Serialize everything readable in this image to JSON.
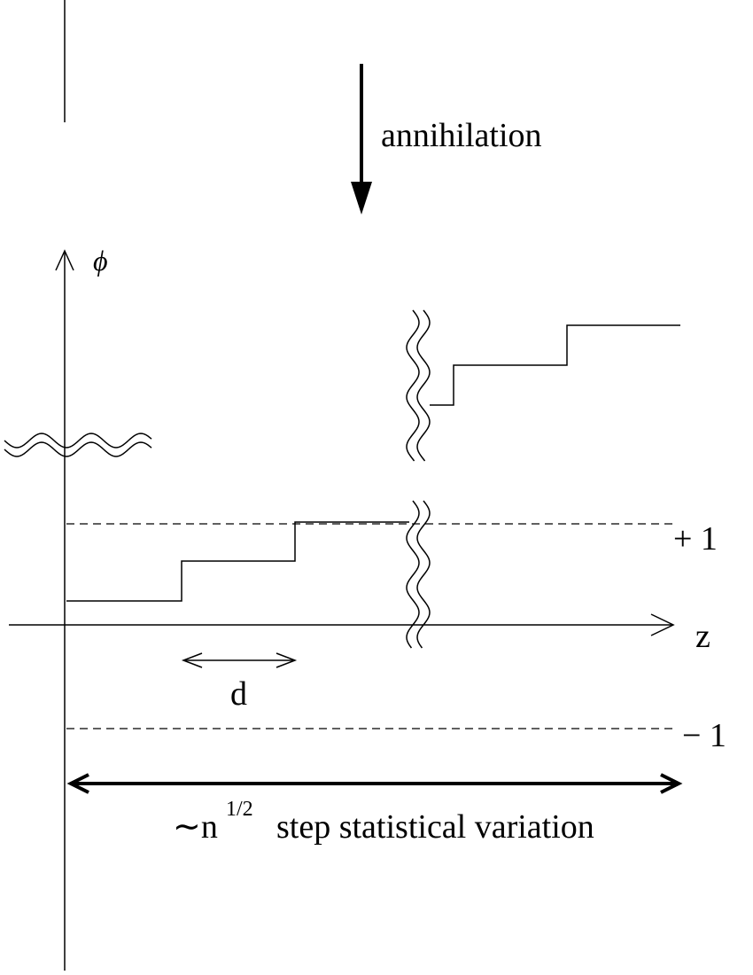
{
  "labels": {
    "annihilation": "annihilation",
    "y_axis": "ϕ",
    "x_axis": "z",
    "plus_one": "+ 1",
    "minus_one": "− 1",
    "spacing": "d",
    "caption": {
      "prefix": "∼n",
      "exponent": "1/2",
      "text": "step statistical variation"
    }
  }
}
